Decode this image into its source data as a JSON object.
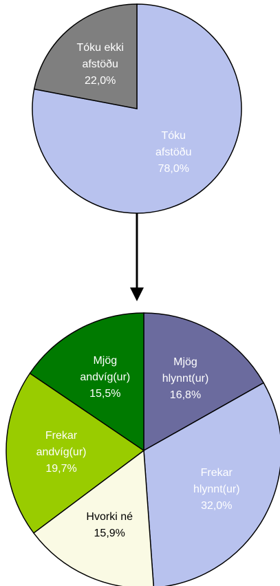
{
  "chart_data": [
    {
      "type": "pie",
      "categories": [
        "Tóku afstöðu",
        "Tóku ekki afstöðu"
      ],
      "values": [
        78.0,
        22.0
      ],
      "value_labels": [
        "78,0%",
        "22,0%"
      ],
      "colors": [
        "#b8c2ee",
        "#7f7f7f"
      ],
      "label_colors": [
        "#ffffff",
        "#ffffff"
      ]
    },
    {
      "type": "pie",
      "categories": [
        "Mjög hlynnt(ur)",
        "Frekar hlynnt(ur)",
        "Hvorki né",
        "Frekar andvíg(ur)",
        "Mjög andvíg(ur)"
      ],
      "values": [
        16.8,
        32.0,
        15.9,
        19.7,
        15.5
      ],
      "value_labels": [
        "16,8%",
        "32,0%",
        "15,9%",
        "19,7%",
        "15,5%"
      ],
      "colors": [
        "#6b6b9e",
        "#b8c2ee",
        "#fafae4",
        "#99cc00",
        "#007a00"
      ],
      "label_colors": [
        "#ffffff",
        "#ffffff",
        "#000000",
        "#ffffff",
        "#ffffff"
      ]
    }
  ]
}
